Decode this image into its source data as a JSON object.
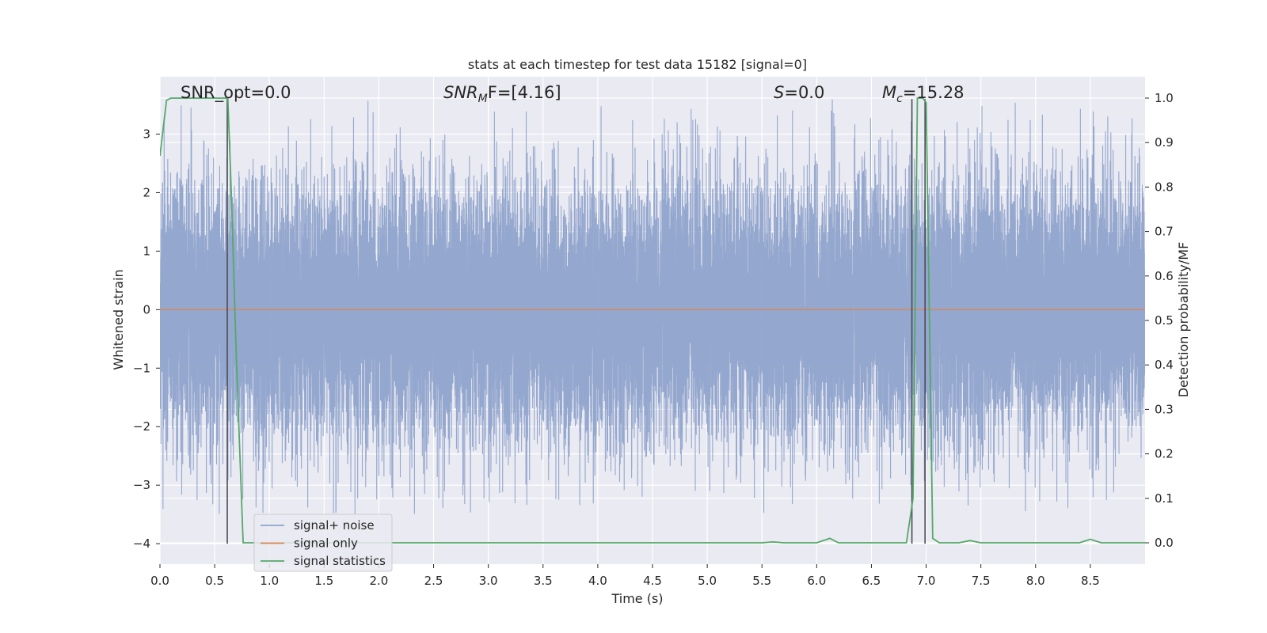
{
  "chart_data": {
    "type": "line",
    "title": "stats at each timestep for test data 15182 [signal=0]",
    "xlabel": "Time (s)",
    "ylabel": "Whitened strain",
    "y2label": "Detection probability/MF",
    "xlim": [
      0.0,
      9.0
    ],
    "ylim": [
      -4.35,
      3.98
    ],
    "y2lim": [
      -0.048,
      1.048
    ],
    "x_ticks": [
      0.0,
      0.5,
      1.0,
      1.5,
      2.0,
      2.5,
      3.0,
      3.5,
      4.0,
      4.5,
      5.0,
      5.5,
      6.0,
      6.5,
      7.0,
      7.5,
      8.0,
      8.5
    ],
    "y_ticks": [
      3,
      2,
      1,
      0,
      -1,
      -2,
      -3,
      -4
    ],
    "y2_ticks": [
      1.0,
      0.9,
      0.8,
      0.7,
      0.6,
      0.5,
      0.4,
      0.3,
      0.2,
      0.1,
      0.0
    ],
    "grid": true,
    "legend_position": "lower-left",
    "colors": {
      "noise": "#8fa3cb",
      "signal": "#dd8452",
      "statistics": "#55a868",
      "vline": "#4a4a55",
      "axes_bg": "#eaeaf2",
      "grid": "#ffffff"
    },
    "annotations": [
      {
        "base": "SNR_opt=0.0",
        "sub": "",
        "tail": ""
      },
      {
        "base": "SNR",
        "sub": "M",
        "tail": "F=[4.16]"
      },
      {
        "base": "S",
        "sub": "",
        "tail": "=0.0"
      },
      {
        "base": "M",
        "sub": "c",
        "tail": "=15.28"
      }
    ],
    "vlines": [
      {
        "x": 0.615,
        "y": [
          -4.0,
          3.6
        ]
      },
      {
        "x": 6.87,
        "y": [
          -4.0,
          3.6
        ]
      },
      {
        "x": 6.99,
        "y": [
          -4.0,
          3.6
        ]
      }
    ],
    "series": [
      {
        "name": "signal+ noise",
        "kind": "noise",
        "sigma": 1.1,
        "sample_rate_hz": 2048,
        "y_range": [
          -3.5,
          3.6
        ]
      },
      {
        "name": "signal only",
        "kind": "constant",
        "value": 0.0
      },
      {
        "name": "signal statistics",
        "kind": "line",
        "axis": "right",
        "x": [
          0.0,
          0.06,
          0.1,
          0.2,
          0.3,
          0.4,
          0.5,
          0.6,
          0.62,
          0.65,
          0.7,
          0.76,
          1.0,
          2.0,
          3.0,
          4.0,
          5.0,
          5.5,
          5.6,
          5.7,
          6.0,
          6.12,
          6.2,
          6.5,
          6.7,
          6.82,
          6.88,
          6.92,
          6.97,
          7.0,
          7.06,
          7.12,
          7.3,
          7.4,
          7.5,
          8.0,
          8.4,
          8.5,
          8.6,
          9.0
        ],
        "values": [
          0.87,
          0.995,
          1.0,
          1.0,
          1.0,
          1.0,
          1.0,
          1.0,
          1.0,
          0.8,
          0.4,
          0.0,
          0.0,
          0.0,
          0.0,
          0.0,
          0.0,
          0.0,
          0.002,
          0.0,
          0.0,
          0.01,
          0.0,
          0.0,
          0.0,
          0.0,
          0.1,
          1.0,
          1.0,
          0.99,
          0.01,
          0.0,
          0.0,
          0.005,
          0.0,
          0.0,
          0.0,
          0.008,
          0.0,
          0.0
        ]
      }
    ]
  }
}
